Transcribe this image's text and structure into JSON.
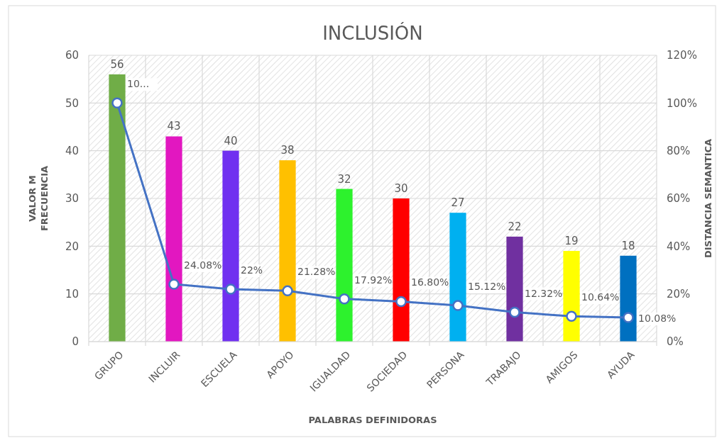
{
  "chart_data": {
    "type": "bar",
    "title": "INCLUSIÓN",
    "xlabel": "PALABRAS DEFINIDORAS",
    "ylabel": "VALOR M\nFRECUENCIA",
    "y2label": "DISTANCIA SEMANTICA",
    "categories": [
      "GRUPO",
      "INCLUIR",
      "ESCUELA",
      "APOYO",
      "IGUALDAD",
      "SOCIEDAD",
      "PERSONA",
      "TRABAJO",
      "AMIGOS",
      "AYUDA"
    ],
    "series": [
      {
        "colors": [
          "#70ad47",
          "#e217c0",
          "#7030f0",
          "#ffc000",
          "#2df22d",
          "#ff0000",
          "#00b0f0",
          "#7030a0",
          "#ffff00",
          "#0070c0"
        ],
        "values": [
          56,
          43,
          40,
          38,
          32,
          30,
          27,
          22,
          19,
          18
        ]
      },
      {
        "type": "line",
        "axis": "y2",
        "color": "#4472c4",
        "marker": "circle",
        "values": [
          100,
          24.08,
          22,
          21.28,
          17.92,
          16.8,
          15.12,
          12.32,
          10.64,
          10.08
        ],
        "value_labels": [
          "10...",
          "24.08%",
          "22%",
          "21.28%",
          "17.92%",
          "16.80%",
          "15.12%",
          "12.32%",
          "10.64%",
          "10.08%"
        ]
      }
    ],
    "ylim": [
      0,
      60
    ],
    "yticks": [
      0,
      10,
      20,
      30,
      40,
      50,
      60
    ],
    "y2lim": [
      0,
      120
    ],
    "y2ticks": [
      {
        "value": 0,
        "label": "0%"
      },
      {
        "value": 20,
        "label": "20%"
      },
      {
        "value": 40,
        "label": "40%"
      },
      {
        "value": 60,
        "label": "60%"
      },
      {
        "value": 80,
        "label": "80%"
      },
      {
        "value": 100,
        "label": "100%"
      },
      {
        "value": 120,
        "label": "120%"
      }
    ],
    "grid": true,
    "data_labels": true
  }
}
